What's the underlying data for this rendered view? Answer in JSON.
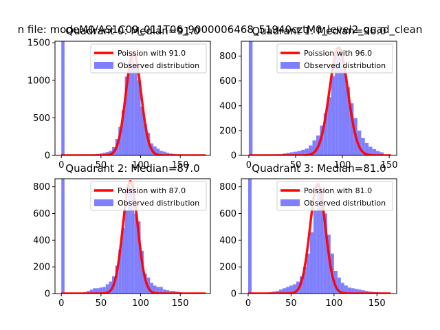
{
  "figure": {
    "suptitle": "n file: modeM0/AS1C09_011T06_9000006468_51940cztM0_level2_quad_clean"
  },
  "colors": {
    "histogram": "#8080ff",
    "poisson": "#ff0000",
    "axes": "#000000"
  },
  "chart_data": [
    {
      "type": "bar",
      "title": "Quadrant 0: Median=91.0",
      "median": 91.0,
      "xlim": [
        -8,
        188
      ],
      "ylim": [
        0,
        1520
      ],
      "xticks": [
        0,
        50,
        100,
        150
      ],
      "yticks": [
        0,
        500,
        1000,
        1500
      ],
      "bin_width": 4,
      "zero_bin": 1520,
      "series": [
        {
          "name": "Observed distribution",
          "bins": [
            [
              20,
              3
            ],
            [
              24,
              5
            ],
            [
              28,
              7
            ],
            [
              32,
              10
            ],
            [
              36,
              12
            ],
            [
              40,
              15
            ],
            [
              44,
              20
            ],
            [
              48,
              25
            ],
            [
              52,
              35
            ],
            [
              56,
              45
            ],
            [
              60,
              60
            ],
            [
              64,
              110
            ],
            [
              68,
              220
            ],
            [
              72,
              380
            ],
            [
              76,
              600
            ],
            [
              80,
              1050
            ],
            [
              84,
              1250
            ],
            [
              88,
              1350
            ],
            [
              92,
              1200
            ],
            [
              96,
              1000
            ],
            [
              100,
              650
            ],
            [
              104,
              420
            ],
            [
              108,
              300
            ],
            [
              112,
              160
            ],
            [
              116,
              120
            ],
            [
              120,
              90
            ],
            [
              124,
              60
            ],
            [
              128,
              50
            ],
            [
              132,
              35
            ],
            [
              136,
              25
            ],
            [
              140,
              20
            ],
            [
              144,
              15
            ],
            [
              148,
              10
            ]
          ]
        },
        {
          "name": "Poission with 91.0",
          "lambda": 91.0,
          "peak": 1380,
          "x_range": [
            0,
            182
          ]
        }
      ],
      "legend": {
        "position": "upper right",
        "entries": [
          "Poission with 91.0",
          "Observed distribution"
        ]
      }
    },
    {
      "type": "bar",
      "title": "Quadrant 1: Median=96.0",
      "median": 96.0,
      "xlim": [
        -8,
        158
      ],
      "ylim": [
        0,
        920
      ],
      "xticks": [
        0,
        50,
        100,
        150
      ],
      "yticks": [
        0,
        200,
        400,
        600,
        800
      ],
      "bin_width": 4,
      "zero_bin": 920,
      "series": [
        {
          "name": "Observed distribution",
          "bins": [
            [
              20,
              3
            ],
            [
              24,
              5
            ],
            [
              28,
              8
            ],
            [
              32,
              10
            ],
            [
              36,
              15
            ],
            [
              40,
              20
            ],
            [
              44,
              25
            ],
            [
              48,
              30
            ],
            [
              52,
              35
            ],
            [
              56,
              45
            ],
            [
              60,
              55
            ],
            [
              64,
              80
            ],
            [
              68,
              120
            ],
            [
              72,
              160
            ],
            [
              76,
              240
            ],
            [
              80,
              340
            ],
            [
              84,
              470
            ],
            [
              88,
              640
            ],
            [
              92,
              810
            ],
            [
              96,
              800
            ],
            [
              100,
              720
            ],
            [
              104,
              550
            ],
            [
              108,
              420
            ],
            [
              112,
              300
            ],
            [
              116,
              200
            ],
            [
              120,
              140
            ],
            [
              124,
              100
            ],
            [
              128,
              70
            ],
            [
              132,
              50
            ],
            [
              136,
              35
            ],
            [
              140,
              25
            ]
          ]
        },
        {
          "name": "Poission with 96.0",
          "lambda": 96.0,
          "peak": 870,
          "x_range": [
            0,
            152
          ]
        }
      ],
      "legend": {
        "position": "upper right",
        "entries": [
          "Poission with 96.0",
          "Observed distribution"
        ]
      }
    },
    {
      "type": "bar",
      "title": "Quadrant 2: Median=87.0",
      "median": 87.0,
      "xlim": [
        -8,
        188
      ],
      "ylim": [
        0,
        860
      ],
      "xticks": [
        0,
        50,
        100,
        150
      ],
      "yticks": [
        0,
        200,
        400,
        600,
        800
      ],
      "bin_width": 4,
      "zero_bin": 860,
      "series": [
        {
          "name": "Observed distribution",
          "bins": [
            [
              24,
              5
            ],
            [
              28,
              10
            ],
            [
              32,
              20
            ],
            [
              36,
              30
            ],
            [
              40,
              40
            ],
            [
              44,
              40
            ],
            [
              48,
              45
            ],
            [
              52,
              50
            ],
            [
              56,
              70
            ],
            [
              60,
              90
            ],
            [
              64,
              130
            ],
            [
              68,
              210
            ],
            [
              72,
              330
            ],
            [
              76,
              490
            ],
            [
              80,
              620
            ],
            [
              84,
              810
            ],
            [
              88,
              830
            ],
            [
              92,
              600
            ],
            [
              96,
              540
            ],
            [
              100,
              320
            ],
            [
              104,
              150
            ],
            [
              108,
              120
            ],
            [
              112,
              80
            ],
            [
              116,
              60
            ],
            [
              120,
              50
            ],
            [
              124,
              50
            ],
            [
              128,
              30
            ],
            [
              132,
              25
            ],
            [
              136,
              20
            ],
            [
              140,
              20
            ],
            [
              144,
              15
            ],
            [
              148,
              10
            ]
          ]
        },
        {
          "name": "Poission with 87.0",
          "lambda": 87.0,
          "peak": 840,
          "x_range": [
            0,
            182
          ]
        }
      ],
      "legend": {
        "position": "upper right",
        "entries": [
          "Poission with 87.0",
          "Observed distribution"
        ]
      }
    },
    {
      "type": "bar",
      "title": "Quadrant 3: Median=81.0",
      "median": 81.0,
      "xlim": [
        -8,
        173
      ],
      "ylim": [
        0,
        860
      ],
      "xticks": [
        0,
        50,
        100,
        150
      ],
      "yticks": [
        0,
        200,
        400,
        600,
        800
      ],
      "bin_width": 4,
      "zero_bin": 860,
      "series": [
        {
          "name": "Observed distribution",
          "bins": [
            [
              20,
              5
            ],
            [
              24,
              10
            ],
            [
              28,
              15
            ],
            [
              32,
              20
            ],
            [
              36,
              30
            ],
            [
              40,
              40
            ],
            [
              44,
              50
            ],
            [
              48,
              60
            ],
            [
              52,
              70
            ],
            [
              56,
              90
            ],
            [
              60,
              130
            ],
            [
              64,
              200
            ],
            [
              68,
              300
            ],
            [
              72,
              460
            ],
            [
              76,
              620
            ],
            [
              80,
              800
            ],
            [
              84,
              760
            ],
            [
              88,
              600
            ],
            [
              92,
              440
            ],
            [
              96,
              300
            ],
            [
              100,
              170
            ],
            [
              104,
              120
            ],
            [
              108,
              80
            ],
            [
              112,
              60
            ],
            [
              116,
              45
            ],
            [
              120,
              40
            ],
            [
              124,
              35
            ],
            [
              128,
              30
            ],
            [
              132,
              25
            ],
            [
              136,
              20
            ],
            [
              140,
              15
            ],
            [
              144,
              12
            ],
            [
              148,
              10
            ],
            [
              152,
              8
            ],
            [
              156,
              6
            ]
          ]
        },
        {
          "name": "Poission with 81.0",
          "lambda": 81.0,
          "peak": 820,
          "x_range": [
            0,
            166
          ]
        }
      ],
      "legend": {
        "position": "upper right",
        "entries": [
          "Poission with 81.0",
          "Observed distribution"
        ]
      }
    }
  ]
}
